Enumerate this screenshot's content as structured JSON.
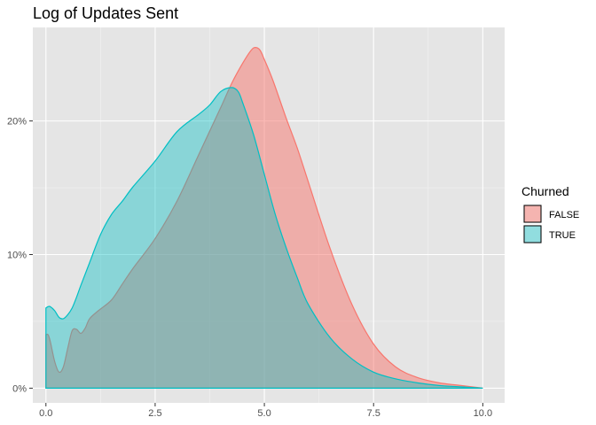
{
  "chart_data": {
    "type": "area",
    "title": "Log of Updates Sent",
    "xlabel": "",
    "ylabel": "",
    "xlim": [
      -0.3,
      10.5
    ],
    "ylim": [
      -0.011,
      0.27
    ],
    "x_ticks": [
      0.0,
      2.5,
      5.0,
      7.5,
      10.0
    ],
    "x_tick_labels": [
      "0.0",
      "2.5",
      "5.0",
      "7.5",
      "10.0"
    ],
    "y_ticks": [
      0.0,
      0.1,
      0.2
    ],
    "y_tick_labels": [
      "0%",
      "10%",
      "20%"
    ],
    "grid": true,
    "background": "#e5e5e5",
    "legend": {
      "title": "Churned",
      "position": "right"
    },
    "series": [
      {
        "name": "FALSE",
        "line_color": "#f8766d",
        "fill_color": "#f8766d",
        "fill_opacity": 0.5,
        "x": [
          0.0,
          0.05,
          0.1,
          0.2,
          0.3,
          0.4,
          0.5,
          0.6,
          0.7,
          0.8,
          0.9,
          1.0,
          1.2,
          1.5,
          1.75,
          2.0,
          2.5,
          3.0,
          3.5,
          4.0,
          4.25,
          4.5,
          4.7,
          4.8,
          4.9,
          5.0,
          5.2,
          5.5,
          5.75,
          6.0,
          6.5,
          7.0,
          7.5,
          8.0,
          8.5,
          9.0,
          9.5,
          10.0
        ],
        "y": [
          0.04,
          0.04,
          0.035,
          0.02,
          0.012,
          0.016,
          0.03,
          0.043,
          0.044,
          0.041,
          0.045,
          0.052,
          0.058,
          0.066,
          0.078,
          0.09,
          0.112,
          0.14,
          0.175,
          0.21,
          0.228,
          0.243,
          0.253,
          0.255,
          0.253,
          0.246,
          0.23,
          0.202,
          0.18,
          0.155,
          0.105,
          0.063,
          0.033,
          0.016,
          0.008,
          0.004,
          0.002,
          0.0
        ]
      },
      {
        "name": "TRUE",
        "line_color": "#00bfc4",
        "fill_color": "#00bfc4",
        "fill_opacity": 0.4,
        "x": [
          0.0,
          0.05,
          0.1,
          0.2,
          0.3,
          0.4,
          0.5,
          0.6,
          0.7,
          0.8,
          1.0,
          1.25,
          1.5,
          1.75,
          2.0,
          2.5,
          3.0,
          3.5,
          3.75,
          4.0,
          4.25,
          4.4,
          4.5,
          4.75,
          5.0,
          5.25,
          5.5,
          5.75,
          6.0,
          6.5,
          7.0,
          7.5,
          8.0,
          8.5,
          9.0,
          9.5,
          10.0
        ],
        "y": [
          0.06,
          0.061,
          0.061,
          0.058,
          0.053,
          0.052,
          0.055,
          0.06,
          0.068,
          0.077,
          0.094,
          0.115,
          0.13,
          0.14,
          0.151,
          0.17,
          0.192,
          0.205,
          0.212,
          0.222,
          0.225,
          0.222,
          0.214,
          0.19,
          0.16,
          0.13,
          0.105,
          0.083,
          0.063,
          0.038,
          0.022,
          0.012,
          0.007,
          0.004,
          0.002,
          0.001,
          0.0
        ]
      }
    ]
  }
}
